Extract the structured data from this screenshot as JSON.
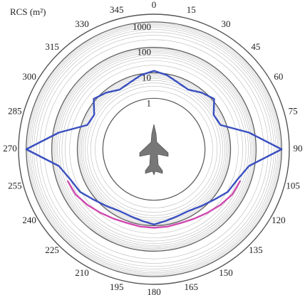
{
  "chart_data": {
    "type": "polar",
    "title": "RCS (m²)",
    "rscale": "log",
    "rlim": [
      0.01,
      2000
    ],
    "rticks": [
      1,
      10,
      100,
      1000
    ],
    "minor_grid": true,
    "theta_ticks": [
      0,
      15,
      30,
      45,
      60,
      75,
      90,
      105,
      120,
      135,
      150,
      165,
      180,
      195,
      210,
      225,
      240,
      255,
      270,
      285,
      300,
      315,
      330,
      345
    ],
    "theta": [
      0,
      10,
      20,
      30,
      40,
      50,
      60,
      70,
      80,
      90,
      100,
      110,
      120,
      130,
      140,
      150,
      160,
      170,
      180,
      190,
      200,
      210,
      220,
      230,
      240,
      250,
      260,
      270,
      280,
      290,
      300,
      310,
      320,
      330,
      340,
      350
    ],
    "series": [
      {
        "color": "#d04ab0",
        "values": [
          null,
          null,
          null,
          null,
          null,
          null,
          null,
          null,
          null,
          null,
          null,
          40,
          35,
          25,
          18,
          14,
          12,
          12,
          12,
          12,
          12,
          14,
          18,
          25,
          35,
          40,
          null,
          null,
          null,
          null,
          null,
          null,
          null,
          null,
          null,
          null
        ]
      },
      {
        "color": "#3a4fc0",
        "values": [
          12,
          9,
          6,
          5,
          8,
          12,
          5,
          6,
          60,
          1000,
          60,
          30,
          22,
          12,
          8,
          6,
          6,
          7,
          9,
          7,
          6,
          6,
          8,
          12,
          22,
          30,
          60,
          1000,
          60,
          6,
          5,
          12,
          8,
          5,
          6,
          9
        ]
      }
    ]
  }
}
